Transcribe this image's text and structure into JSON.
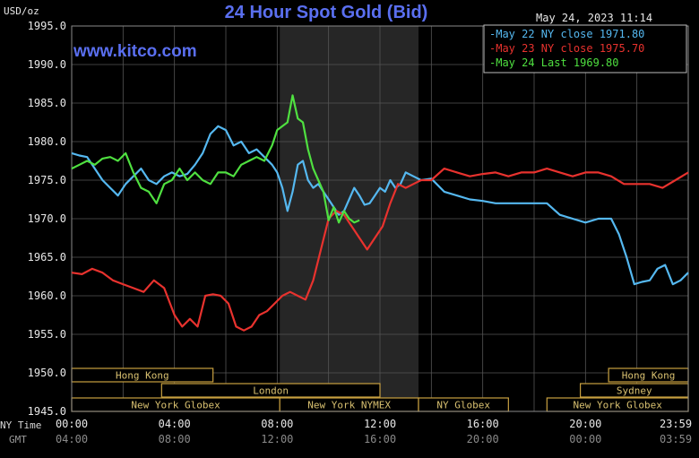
{
  "chart_data": {
    "type": "line",
    "title": "24 Hour Spot Gold (Bid)",
    "ylabel": "USD/oz",
    "watermark": "www.kitco.com",
    "timestamp": "May 24, 2023 11:14",
    "ylim": [
      1945,
      1995
    ],
    "xlim": [
      0,
      24
    ],
    "yticks": [
      "1995.0",
      "1990.0",
      "1985.0",
      "1980.0",
      "1975.0",
      "1970.0",
      "1965.0",
      "1960.0",
      "1955.0",
      "1950.0",
      "1945.0"
    ],
    "xticks_ny": [
      "00:00",
      "04:00",
      "08:00",
      "12:00",
      "16:00",
      "20:00",
      "23:59"
    ],
    "xticks_gmt": [
      "04:00",
      "08:00",
      "12:00",
      "16:00",
      "20:00",
      "00:00",
      "03:59"
    ],
    "row_label_ny": "NY Time",
    "row_label_gmt": "GMT",
    "highlight_range": [
      8.1,
      13.5
    ],
    "grid": true,
    "legend_position": "top-right",
    "series": [
      {
        "name": "May 22 NY close 1971.80",
        "color": "#55b8f0",
        "x": [
          0,
          0.3,
          0.6,
          0.9,
          1.2,
          1.5,
          1.8,
          2.1,
          2.4,
          2.7,
          3.0,
          3.3,
          3.6,
          3.9,
          4.2,
          4.5,
          4.8,
          5.1,
          5.4,
          5.7,
          6.0,
          6.3,
          6.6,
          6.9,
          7.2,
          7.5,
          7.8,
          8.0,
          8.2,
          8.4,
          8.6,
          8.8,
          9.0,
          9.2,
          9.4,
          9.6,
          9.8,
          10.0,
          10.2,
          10.4,
          10.6,
          10.8,
          11.0,
          11.2,
          11.4,
          11.6,
          11.8,
          12.0,
          12.2,
          12.4,
          12.6,
          12.8,
          13.0,
          13.3,
          13.6,
          14.0,
          14.5,
          15.0,
          15.5,
          16.0,
          16.5,
          17.0,
          17.5,
          18.0,
          18.5,
          19.0,
          19.5,
          20.0,
          20.5,
          21.0,
          21.3,
          21.6,
          21.9,
          22.2,
          22.5,
          22.8,
          23.1,
          23.4,
          23.7,
          24.0
        ],
        "y": [
          1978.5,
          1978.2,
          1978,
          1976.5,
          1975,
          1974,
          1973,
          1974.5,
          1975.5,
          1976.5,
          1975,
          1974.5,
          1975.5,
          1976,
          1975.5,
          1975.8,
          1977,
          1978.5,
          1981,
          1982,
          1981.5,
          1979.5,
          1980,
          1978.5,
          1979,
          1978,
          1977,
          1976,
          1974,
          1971,
          1973.5,
          1977,
          1977.5,
          1975,
          1974,
          1974.5,
          1973.5,
          1972.5,
          1971.5,
          1970.5,
          1971,
          1972.5,
          1974,
          1973,
          1971.8,
          1972,
          1973,
          1974,
          1973.5,
          1975,
          1974,
          1974.5,
          1976,
          1975.5,
          1975,
          1975.2,
          1973.5,
          1973,
          1972.5,
          1972.3,
          1972,
          1972,
          1972,
          1972,
          1972,
          1970.5,
          1970,
          1969.5,
          1970,
          1970,
          1968,
          1965,
          1961.5,
          1961.8,
          1962,
          1963.5,
          1964,
          1961.5,
          1962,
          1963
        ]
      },
      {
        "name": "May 23 NY close 1975.70",
        "color": "#e8322e",
        "x": [
          0,
          0.4,
          0.8,
          1.2,
          1.6,
          2.0,
          2.4,
          2.8,
          3.2,
          3.6,
          4.0,
          4.3,
          4.6,
          4.9,
          5.2,
          5.5,
          5.8,
          6.1,
          6.4,
          6.7,
          7.0,
          7.3,
          7.6,
          7.9,
          8.2,
          8.5,
          8.8,
          9.1,
          9.4,
          9.7,
          10.0,
          10.3,
          10.6,
          10.9,
          11.2,
          11.5,
          11.8,
          12.1,
          12.4,
          12.7,
          13.0,
          13.3,
          13.6,
          14.0,
          14.5,
          15.0,
          15.5,
          16.0,
          16.5,
          17.0,
          17.5,
          18.0,
          18.5,
          19.0,
          19.5,
          20.0,
          20.5,
          21.0,
          21.5,
          22.0,
          22.5,
          23.0,
          23.5,
          24.0
        ],
        "y": [
          1963,
          1962.8,
          1963.5,
          1963,
          1962,
          1961.5,
          1961,
          1960.5,
          1962,
          1961,
          1957.5,
          1956,
          1957,
          1956,
          1960,
          1960.2,
          1960,
          1959,
          1956,
          1955.5,
          1956,
          1957.5,
          1958,
          1959,
          1960,
          1960.5,
          1960,
          1959.5,
          1962,
          1966,
          1970,
          1971,
          1970.5,
          1969,
          1967.5,
          1966,
          1967.5,
          1969,
          1972,
          1974.5,
          1974,
          1974.5,
          1975,
          1975,
          1976.5,
          1976,
          1975.5,
          1975.8,
          1976,
          1975.5,
          1976,
          1976,
          1976.5,
          1976,
          1975.5,
          1976,
          1976,
          1975.5,
          1974.5,
          1974.5,
          1974.5,
          1974,
          1975,
          1976
        ]
      },
      {
        "name": "May 24 Last 1969.80",
        "color": "#4fe040",
        "x": [
          0,
          0.3,
          0.6,
          0.9,
          1.2,
          1.5,
          1.8,
          2.1,
          2.4,
          2.7,
          3.0,
          3.3,
          3.6,
          3.9,
          4.2,
          4.5,
          4.8,
          5.1,
          5.4,
          5.7,
          6.0,
          6.3,
          6.6,
          6.9,
          7.2,
          7.5,
          7.8,
          8.0,
          8.2,
          8.4,
          8.6,
          8.8,
          9.0,
          9.2,
          9.4,
          9.6,
          9.8,
          10.0,
          10.2,
          10.4,
          10.6,
          10.8,
          11.0,
          11.2
        ],
        "y": [
          1976.5,
          1977,
          1977.5,
          1977,
          1977.8,
          1978,
          1977.5,
          1978.5,
          1976,
          1974,
          1973.5,
          1972,
          1974.5,
          1975,
          1976.5,
          1975,
          1976,
          1975,
          1974.5,
          1976,
          1976,
          1975.5,
          1977,
          1977.5,
          1978,
          1977.5,
          1979.5,
          1981.5,
          1982,
          1982.5,
          1986,
          1983,
          1982.5,
          1979,
          1976.5,
          1975,
          1973.5,
          1969.8,
          1971.5,
          1969.5,
          1971,
          1970,
          1969.5,
          1969.8
        ]
      }
    ]
  },
  "sessions": [
    {
      "label": "Hong Kong",
      "row": 0,
      "start": 0,
      "end": 5.5
    },
    {
      "label": "Hong Kong",
      "row": 0,
      "start": 20.9,
      "end": 24
    },
    {
      "label": "London",
      "row": 1,
      "start": 3.5,
      "end": 12
    },
    {
      "label": "Sydney",
      "row": 1,
      "start": 19.8,
      "end": 24
    },
    {
      "label": "New York Globex",
      "row": 2,
      "start": 0,
      "end": 8.1
    },
    {
      "label": "New York NYMEX",
      "row": 2,
      "start": 8.1,
      "end": 13.5
    },
    {
      "label": "NY Globex",
      "row": 2,
      "start": 13.5,
      "end": 17
    },
    {
      "label": "New York Globex",
      "row": 2,
      "start": 18.5,
      "end": 24
    }
  ]
}
